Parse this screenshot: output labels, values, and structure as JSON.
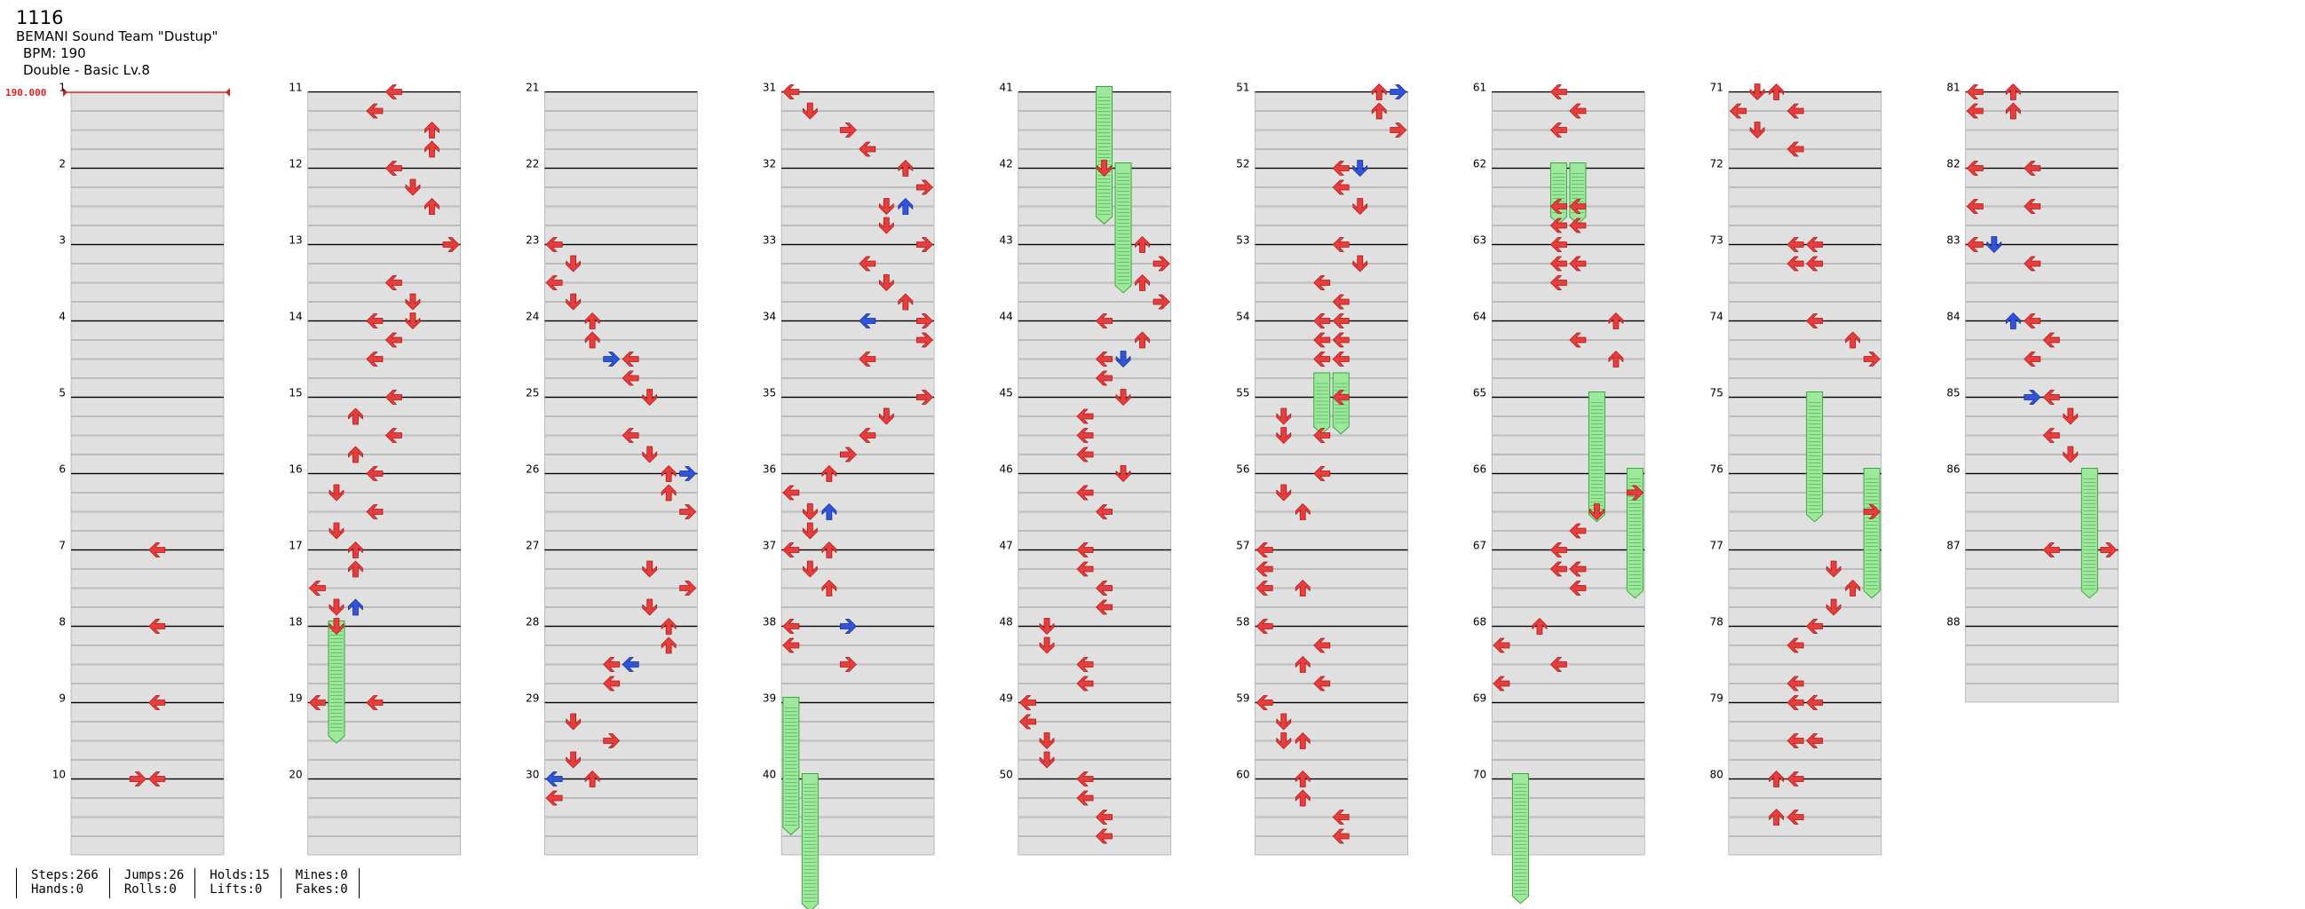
{
  "song": {
    "title": "1116",
    "artist": "BEMANI Sound Team \"Dustup\"",
    "bpm_text": "BPM: 190",
    "difficulty_text": "Double - Basic  Lv.8"
  },
  "bpm_marker": {
    "label": "190.000",
    "color": "#dd2222"
  },
  "colors": {
    "tap": "#e83d3d",
    "tap_edge": "#b41818",
    "offbeat": "#2f55dc",
    "offbeat_edge": "#1b2f99",
    "hold": "#9de89d",
    "hold_edge": "#3aa83a",
    "band": "#e0e0e0",
    "band_edge": "#9a9a9a",
    "measure_line": "#000000"
  },
  "measures": {
    "count": 88,
    "per_column": 10,
    "labels": [
      "1",
      "2",
      "3",
      "4",
      "5",
      "6",
      "7",
      "8",
      "9",
      "10",
      "11",
      "12",
      "13",
      "14",
      "15",
      "16",
      "17",
      "18",
      "19",
      "20",
      "21",
      "22",
      "23",
      "24",
      "25",
      "26",
      "27",
      "28",
      "29",
      "30",
      "31",
      "32",
      "33",
      "34",
      "35",
      "36",
      "37",
      "38",
      "39",
      "40",
      "41",
      "42",
      "43",
      "44",
      "45",
      "46",
      "47",
      "48",
      "49",
      "50",
      "51",
      "52",
      "53",
      "54",
      "55",
      "56",
      "57",
      "58",
      "59",
      "60",
      "61",
      "62",
      "63",
      "64",
      "65",
      "66",
      "67",
      "68",
      "69",
      "70",
      "71",
      "72",
      "73",
      "74",
      "75",
      "76",
      "77",
      "78",
      "79",
      "80",
      "81",
      "82",
      "83",
      "84",
      "85",
      "86",
      "87",
      "88"
    ]
  },
  "notes": [
    [
      7,
      0,
      4,
      "L"
    ],
    [
      8,
      0,
      4,
      "L"
    ],
    [
      9,
      0,
      4,
      "L"
    ],
    [
      10,
      0,
      3,
      "R"
    ],
    [
      10,
      0,
      4,
      "L"
    ],
    [
      11,
      0,
      4,
      "L"
    ],
    [
      11,
      1,
      3,
      "L"
    ],
    [
      11,
      2,
      6,
      "U"
    ],
    [
      11,
      3,
      6,
      "U"
    ],
    [
      12,
      0,
      4,
      "L"
    ],
    [
      12,
      1,
      5,
      "D"
    ],
    [
      12,
      2,
      6,
      "U"
    ],
    [
      13,
      0,
      7,
      "R"
    ],
    [
      13,
      2,
      4,
      "L"
    ],
    [
      13,
      3,
      5,
      "D"
    ],
    [
      14,
      0,
      5,
      "D"
    ],
    [
      14,
      0,
      3,
      "L"
    ],
    [
      14,
      1,
      4,
      "L"
    ],
    [
      14,
      2,
      3,
      "L"
    ],
    [
      15,
      0,
      4,
      "L"
    ],
    [
      15,
      1,
      2,
      "U"
    ],
    [
      15,
      2,
      4,
      "L"
    ],
    [
      15,
      3,
      2,
      "U"
    ],
    [
      16,
      0,
      3,
      "L"
    ],
    [
      16,
      1,
      1,
      "D"
    ],
    [
      16,
      2,
      3,
      "L"
    ],
    [
      16,
      3,
      1,
      "D"
    ],
    [
      17,
      0,
      2,
      "U"
    ],
    [
      17,
      1,
      2,
      "U"
    ],
    [
      17,
      2,
      0,
      "L"
    ],
    [
      17,
      3,
      1,
      "D"
    ],
    [
      17,
      3,
      2,
      "U",
      "b"
    ],
    [
      18,
      0,
      1,
      "D"
    ],
    [
      19,
      0,
      0,
      "L"
    ],
    [
      19,
      0,
      3,
      "L"
    ],
    [
      23,
      0,
      0,
      "L"
    ],
    [
      23,
      1,
      1,
      "D"
    ],
    [
      23,
      2,
      0,
      "L"
    ],
    [
      23,
      3,
      1,
      "D"
    ],
    [
      24,
      0,
      2,
      "U"
    ],
    [
      24,
      1,
      2,
      "U"
    ],
    [
      24,
      2,
      3,
      "R",
      "b"
    ],
    [
      24,
      2,
      4,
      "L"
    ],
    [
      24,
      3,
      4,
      "L"
    ],
    [
      25,
      0,
      5,
      "D"
    ],
    [
      25,
      2,
      4,
      "L"
    ],
    [
      25,
      3,
      5,
      "D"
    ],
    [
      26,
      0,
      6,
      "U"
    ],
    [
      26,
      0,
      7,
      "R",
      "b"
    ],
    [
      26,
      1,
      6,
      "U"
    ],
    [
      26,
      2,
      7,
      "R"
    ],
    [
      27,
      1,
      5,
      "D"
    ],
    [
      27,
      2,
      7,
      "R"
    ],
    [
      27,
      3,
      5,
      "D"
    ],
    [
      28,
      0,
      6,
      "U"
    ],
    [
      28,
      1,
      6,
      "U"
    ],
    [
      28,
      2,
      3,
      "L"
    ],
    [
      28,
      2,
      4,
      "L",
      "b"
    ],
    [
      28,
      3,
      3,
      "L"
    ],
    [
      29,
      1,
      1,
      "D"
    ],
    [
      29,
      2,
      3,
      "R"
    ],
    [
      29,
      3,
      1,
      "D"
    ],
    [
      30,
      0,
      0,
      "L",
      "b"
    ],
    [
      30,
      0,
      2,
      "U"
    ],
    [
      30,
      1,
      0,
      "L"
    ],
    [
      31,
      0,
      0,
      "L"
    ],
    [
      31,
      1,
      1,
      "D"
    ],
    [
      31,
      2,
      3,
      "R"
    ],
    [
      31,
      3,
      4,
      "L"
    ],
    [
      32,
      0,
      6,
      "U"
    ],
    [
      32,
      1,
      7,
      "R"
    ],
    [
      32,
      2,
      5,
      "D"
    ],
    [
      32,
      2,
      6,
      "U",
      "b"
    ],
    [
      32,
      3,
      5,
      "D"
    ],
    [
      33,
      0,
      7,
      "R"
    ],
    [
      33,
      1,
      4,
      "L"
    ],
    [
      33,
      2,
      5,
      "D"
    ],
    [
      33,
      3,
      6,
      "U"
    ],
    [
      34,
      0,
      7,
      "R"
    ],
    [
      34,
      0,
      4,
      "L",
      "b"
    ],
    [
      34,
      1,
      7,
      "R"
    ],
    [
      34,
      2,
      4,
      "L"
    ],
    [
      35,
      0,
      7,
      "R"
    ],
    [
      35,
      1,
      5,
      "D"
    ],
    [
      35,
      2,
      4,
      "L"
    ],
    [
      35,
      3,
      3,
      "R"
    ],
    [
      36,
      0,
      2,
      "U"
    ],
    [
      36,
      1,
      0,
      "L"
    ],
    [
      36,
      2,
      1,
      "D"
    ],
    [
      36,
      2,
      2,
      "U",
      "b"
    ],
    [
      36,
      3,
      1,
      "D"
    ],
    [
      37,
      0,
      0,
      "L"
    ],
    [
      37,
      0,
      2,
      "U"
    ],
    [
      37,
      1,
      1,
      "D"
    ],
    [
      37,
      2,
      2,
      "U"
    ],
    [
      38,
      0,
      0,
      "L"
    ],
    [
      38,
      0,
      3,
      "R",
      "b"
    ],
    [
      38,
      1,
      0,
      "L"
    ],
    [
      38,
      2,
      3,
      "R"
    ],
    [
      42,
      0,
      4,
      "D"
    ],
    [
      43,
      0,
      6,
      "U"
    ],
    [
      43,
      1,
      7,
      "R"
    ],
    [
      43,
      2,
      6,
      "U"
    ],
    [
      43,
      3,
      7,
      "R"
    ],
    [
      44,
      0,
      4,
      "L"
    ],
    [
      44,
      1,
      6,
      "U"
    ],
    [
      44,
      2,
      4,
      "L"
    ],
    [
      44,
      2,
      5,
      "D",
      "b"
    ],
    [
      44,
      3,
      4,
      "L"
    ],
    [
      45,
      0,
      5,
      "D"
    ],
    [
      45,
      1,
      3,
      "L"
    ],
    [
      45,
      2,
      3,
      "L"
    ],
    [
      45,
      3,
      3,
      "L"
    ],
    [
      46,
      0,
      5,
      "D"
    ],
    [
      46,
      1,
      3,
      "L"
    ],
    [
      46,
      2,
      4,
      "L"
    ],
    [
      47,
      0,
      3,
      "L"
    ],
    [
      47,
      1,
      3,
      "L"
    ],
    [
      47,
      2,
      4,
      "L"
    ],
    [
      47,
      3,
      4,
      "L"
    ],
    [
      48,
      0,
      1,
      "D"
    ],
    [
      48,
      1,
      1,
      "D"
    ],
    [
      48,
      2,
      3,
      "L"
    ],
    [
      48,
      3,
      3,
      "L"
    ],
    [
      49,
      0,
      0,
      "L"
    ],
    [
      49,
      1,
      0,
      "L"
    ],
    [
      49,
      2,
      1,
      "D"
    ],
    [
      49,
      3,
      1,
      "D"
    ],
    [
      50,
      0,
      3,
      "L"
    ],
    [
      50,
      1,
      3,
      "L"
    ],
    [
      50,
      2,
      4,
      "L"
    ],
    [
      50,
      3,
      4,
      "L"
    ],
    [
      51,
      0,
      6,
      "U"
    ],
    [
      51,
      0,
      7,
      "R",
      "b"
    ],
    [
      51,
      1,
      6,
      "U"
    ],
    [
      51,
      2,
      7,
      "R"
    ],
    [
      52,
      0,
      4,
      "L"
    ],
    [
      52,
      0,
      5,
      "D",
      "b"
    ],
    [
      52,
      1,
      4,
      "L"
    ],
    [
      52,
      2,
      5,
      "D"
    ],
    [
      53,
      0,
      4,
      "L"
    ],
    [
      53,
      1,
      5,
      "D"
    ],
    [
      53,
      2,
      3,
      "L"
    ],
    [
      53,
      3,
      4,
      "L"
    ],
    [
      54,
      0,
      3,
      "L"
    ],
    [
      54,
      0,
      4,
      "L"
    ],
    [
      54,
      1,
      3,
      "L"
    ],
    [
      54,
      1,
      4,
      "L"
    ],
    [
      54,
      2,
      3,
      "L"
    ],
    [
      54,
      2,
      4,
      "L"
    ],
    [
      55,
      0,
      4,
      "L"
    ],
    [
      55,
      1,
      1,
      "D"
    ],
    [
      55,
      2,
      1,
      "D"
    ],
    [
      55,
      2,
      3,
      "L"
    ],
    [
      56,
      0,
      3,
      "L"
    ],
    [
      56,
      1,
      1,
      "D"
    ],
    [
      56,
      2,
      2,
      "U"
    ],
    [
      57,
      0,
      0,
      "L"
    ],
    [
      57,
      1,
      0,
      "L"
    ],
    [
      57,
      2,
      0,
      "L"
    ],
    [
      57,
      2,
      2,
      "U"
    ],
    [
      58,
      0,
      0,
      "L"
    ],
    [
      58,
      1,
      3,
      "L"
    ],
    [
      58,
      2,
      2,
      "U"
    ],
    [
      58,
      3,
      3,
      "L"
    ],
    [
      59,
      0,
      0,
      "L"
    ],
    [
      59,
      1,
      1,
      "D"
    ],
    [
      59,
      2,
      1,
      "D"
    ],
    [
      59,
      2,
      2,
      "U"
    ],
    [
      60,
      0,
      2,
      "U"
    ],
    [
      60,
      1,
      2,
      "U"
    ],
    [
      60,
      2,
      4,
      "L"
    ],
    [
      60,
      3,
      4,
      "L"
    ],
    [
      61,
      0,
      3,
      "L"
    ],
    [
      61,
      1,
      4,
      "L"
    ],
    [
      61,
      2,
      3,
      "L"
    ],
    [
      62,
      2,
      3,
      "L"
    ],
    [
      62,
      2,
      4,
      "L"
    ],
    [
      62,
      3,
      3,
      "L"
    ],
    [
      62,
      3,
      4,
      "L"
    ],
    [
      63,
      0,
      3,
      "L"
    ],
    [
      63,
      1,
      3,
      "L"
    ],
    [
      63,
      1,
      4,
      "L"
    ],
    [
      63,
      2,
      3,
      "L"
    ],
    [
      64,
      0,
      6,
      "U"
    ],
    [
      64,
      1,
      4,
      "L"
    ],
    [
      64,
      2,
      6,
      "U"
    ],
    [
      66,
      1,
      7,
      "R"
    ],
    [
      66,
      2,
      5,
      "D"
    ],
    [
      66,
      3,
      4,
      "L"
    ],
    [
      67,
      0,
      3,
      "L"
    ],
    [
      67,
      1,
      3,
      "L"
    ],
    [
      67,
      1,
      4,
      "L"
    ],
    [
      67,
      2,
      4,
      "L"
    ],
    [
      68,
      0,
      2,
      "U"
    ],
    [
      68,
      1,
      0,
      "L"
    ],
    [
      68,
      2,
      3,
      "L"
    ],
    [
      68,
      3,
      0,
      "L"
    ],
    [
      71,
      0,
      1,
      "D"
    ],
    [
      71,
      0,
      2,
      "U"
    ],
    [
      71,
      1,
      0,
      "L"
    ],
    [
      71,
      1,
      3,
      "L"
    ],
    [
      71,
      2,
      1,
      "D"
    ],
    [
      71,
      3,
      3,
      "L"
    ],
    [
      73,
      0,
      3,
      "L"
    ],
    [
      73,
      0,
      4,
      "L"
    ],
    [
      73,
      1,
      3,
      "L"
    ],
    [
      73,
      1,
      4,
      "L"
    ],
    [
      74,
      0,
      4,
      "L"
    ],
    [
      74,
      1,
      6,
      "U"
    ],
    [
      74,
      2,
      7,
      "R"
    ],
    [
      76,
      2,
      7,
      "R"
    ],
    [
      77,
      1,
      5,
      "D"
    ],
    [
      77,
      2,
      6,
      "U"
    ],
    [
      77,
      3,
      5,
      "D"
    ],
    [
      78,
      0,
      4,
      "L"
    ],
    [
      78,
      1,
      3,
      "L"
    ],
    [
      78,
      3,
      3,
      "L"
    ],
    [
      79,
      0,
      3,
      "L"
    ],
    [
      79,
      0,
      4,
      "L"
    ],
    [
      79,
      2,
      3,
      "L"
    ],
    [
      79,
      2,
      4,
      "L"
    ],
    [
      80,
      0,
      2,
      "U"
    ],
    [
      80,
      0,
      3,
      "L"
    ],
    [
      80,
      2,
      2,
      "U"
    ],
    [
      80,
      2,
      3,
      "L"
    ],
    [
      81,
      0,
      0,
      "L"
    ],
    [
      81,
      0,
      2,
      "U"
    ],
    [
      81,
      1,
      0,
      "L"
    ],
    [
      81,
      1,
      2,
      "U"
    ],
    [
      82,
      0,
      0,
      "L"
    ],
    [
      82,
      0,
      3,
      "L"
    ],
    [
      82,
      2,
      0,
      "L"
    ],
    [
      82,
      2,
      3,
      "L"
    ],
    [
      83,
      0,
      0,
      "L"
    ],
    [
      83,
      0,
      1,
      "D",
      "b"
    ],
    [
      83,
      1,
      3,
      "L"
    ],
    [
      84,
      0,
      3,
      "L"
    ],
    [
      84,
      0,
      2,
      "U",
      "b"
    ],
    [
      84,
      1,
      4,
      "L"
    ],
    [
      84,
      2,
      3,
      "L"
    ],
    [
      85,
      0,
      4,
      "L"
    ],
    [
      85,
      0,
      3,
      "R",
      "b"
    ],
    [
      85,
      1,
      5,
      "D"
    ],
    [
      85,
      2,
      4,
      "L"
    ],
    [
      85,
      3,
      5,
      "D"
    ],
    [
      87,
      0,
      4,
      "L"
    ],
    [
      87,
      0,
      7,
      "R"
    ]
  ],
  "holds": [
    [
      18,
      0,
      1,
      1.6
    ],
    [
      39,
      0,
      0,
      1.8
    ],
    [
      40,
      0,
      1,
      1.8
    ],
    [
      41,
      0,
      4,
      1.8
    ],
    [
      42,
      0,
      5,
      1.7
    ],
    [
      54,
      3,
      3,
      0.8
    ],
    [
      54,
      3,
      4,
      0.8
    ],
    [
      62,
      0,
      3,
      0.8
    ],
    [
      62,
      0,
      4,
      0.8
    ],
    [
      65,
      0,
      5,
      1.7
    ],
    [
      66,
      0,
      7,
      1.7
    ],
    [
      70,
      0,
      1,
      1.7
    ],
    [
      75,
      0,
      4,
      1.7
    ],
    [
      76,
      0,
      7,
      1.7
    ],
    [
      86,
      0,
      6,
      1.7
    ]
  ],
  "stats": {
    "steps": "Steps:266",
    "hands": "Hands:0",
    "jumps": "Jumps:26",
    "rolls": "Rolls:0",
    "holds": "Holds:15",
    "lifts": "Lifts:0",
    "mines": "Mines:0",
    "fakes": "Fakes:0"
  }
}
